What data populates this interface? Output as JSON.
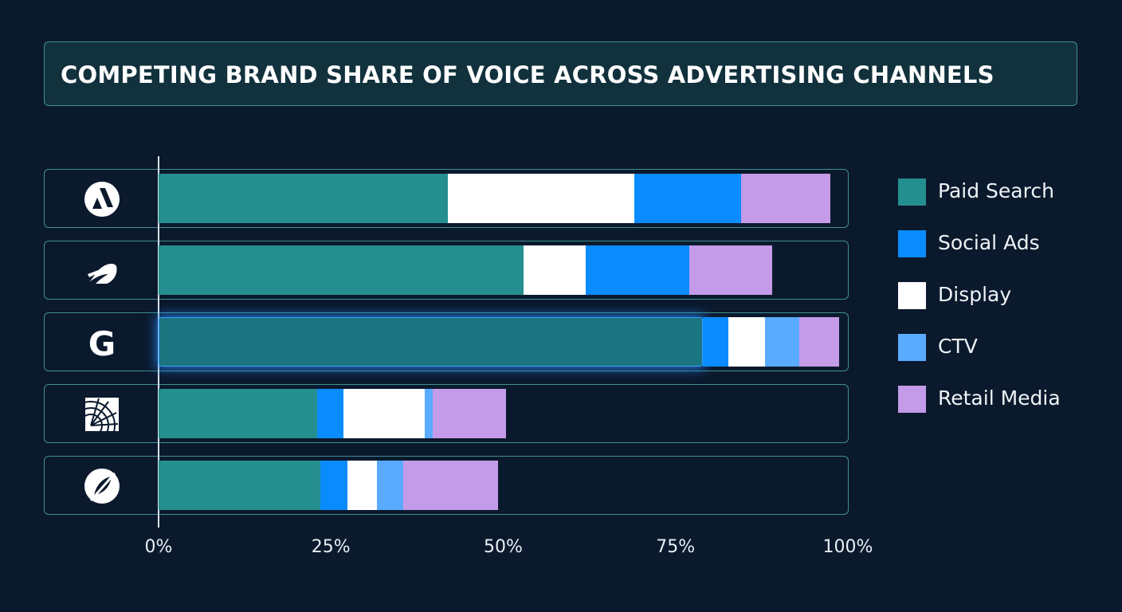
{
  "title": "COMPETING BRAND SHARE OF VOICE ACROSS ADVERTISING CHANNELS",
  "colors": {
    "background": "#0b192d",
    "Paid Search": "#258f8f",
    "Paid Search (highlighted)": "#1b7580",
    "Social Ads": "#0a8cff",
    "Display": "#ffffff",
    "CTV": "#5aabff",
    "Retail Media": "#c39be8"
  },
  "chart_data": {
    "type": "bar",
    "orientation": "horizontal",
    "stacked": true,
    "title": "COMPETING BRAND SHARE OF VOICE ACROSS ADVERTISING CHANNELS",
    "categories": [
      "brand-a-logo",
      "brand-b-logo",
      "brand-g-logo",
      "brand-d-logo",
      "brand-e-logo"
    ],
    "highlighted_category": "brand-g-logo",
    "xlim": [
      0,
      100
    ],
    "xticks": [
      "0%",
      "25%",
      "50%",
      "75%",
      "100%"
    ],
    "legend_position": "right",
    "series": [
      {
        "name": "Paid Search",
        "values": [
          42,
          53,
          79,
          23,
          23.5
        ]
      },
      {
        "name": "Social Ads",
        "values": [
          15.5,
          15,
          3.7,
          3.8,
          3.9
        ]
      },
      {
        "name": "Display",
        "values": [
          27,
          9,
          5.3,
          11.8,
          4.3
        ]
      },
      {
        "name": "CTV",
        "values": [
          0,
          0,
          4.9,
          1.2,
          3.8
        ]
      },
      {
        "name": "Retail Media",
        "values": [
          13,
          12,
          5.8,
          10.6,
          13.8
        ]
      }
    ],
    "segment_order": [
      [
        "Paid Search",
        "Display",
        "Social Ads",
        "Retail Media"
      ],
      [
        "Paid Search",
        "Display",
        "Social Ads",
        "Retail Media"
      ],
      [
        "Paid Search",
        "Social Ads",
        "Display",
        "CTV",
        "Retail Media"
      ],
      [
        "Paid Search",
        "Social Ads",
        "Display",
        "CTV",
        "Retail Media"
      ],
      [
        "Paid Search",
        "Social Ads",
        "Display",
        "CTV",
        "Retail Media"
      ]
    ]
  },
  "legend": [
    "Paid Search",
    "Social Ads",
    "Display",
    "CTV",
    "Retail Media"
  ]
}
